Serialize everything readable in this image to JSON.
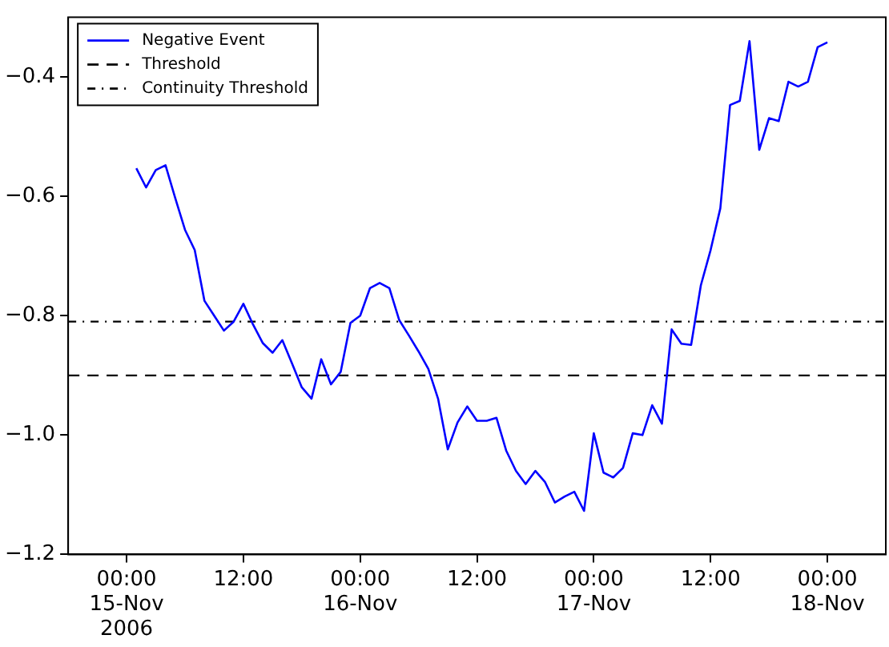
{
  "chart_data": {
    "type": "line",
    "x": [
      "2006-11-15T01:00",
      "2006-11-15T02:00",
      "2006-11-15T03:00",
      "2006-11-15T04:00",
      "2006-11-15T05:00",
      "2006-11-15T06:00",
      "2006-11-15T07:00",
      "2006-11-15T08:00",
      "2006-11-15T09:00",
      "2006-11-15T10:00",
      "2006-11-15T11:00",
      "2006-11-15T12:00",
      "2006-11-15T13:00",
      "2006-11-15T14:00",
      "2006-11-15T15:00",
      "2006-11-15T16:00",
      "2006-11-15T17:00",
      "2006-11-15T18:00",
      "2006-11-15T19:00",
      "2006-11-15T20:00",
      "2006-11-15T21:00",
      "2006-11-15T22:00",
      "2006-11-15T23:00",
      "2006-11-16T00:00",
      "2006-11-16T01:00",
      "2006-11-16T02:00",
      "2006-11-16T03:00",
      "2006-11-16T04:00",
      "2006-11-16T05:00",
      "2006-11-16T06:00",
      "2006-11-16T07:00",
      "2006-11-16T08:00",
      "2006-11-16T09:00",
      "2006-11-16T10:00",
      "2006-11-16T11:00",
      "2006-11-16T12:00",
      "2006-11-16T13:00",
      "2006-11-16T14:00",
      "2006-11-16T15:00",
      "2006-11-16T16:00",
      "2006-11-16T17:00",
      "2006-11-16T18:00",
      "2006-11-16T19:00",
      "2006-11-16T20:00",
      "2006-11-16T21:00",
      "2006-11-16T22:00",
      "2006-11-16T23:00",
      "2006-11-17T00:00",
      "2006-11-17T01:00",
      "2006-11-17T02:00",
      "2006-11-17T03:00",
      "2006-11-17T04:00",
      "2006-11-17T05:00",
      "2006-11-17T06:00",
      "2006-11-17T07:00",
      "2006-11-17T08:00",
      "2006-11-17T09:00",
      "2006-11-17T10:00",
      "2006-11-17T11:00",
      "2006-11-17T12:00",
      "2006-11-17T13:00",
      "2006-11-17T14:00",
      "2006-11-17T15:00",
      "2006-11-17T16:00",
      "2006-11-17T17:00",
      "2006-11-17T18:00",
      "2006-11-17T19:00",
      "2006-11-17T20:00",
      "2006-11-17T21:00",
      "2006-11-17T22:00",
      "2006-11-17T23:00",
      "2006-11-18T00:00"
    ],
    "series": [
      {
        "name": "Negative Event",
        "color": "#0000ff",
        "values": [
          -0.553,
          -0.585,
          -0.556,
          -0.548,
          -0.603,
          -0.656,
          -0.69,
          -0.775,
          -0.8,
          -0.825,
          -0.81,
          -0.78,
          -0.815,
          -0.846,
          -0.862,
          -0.841,
          -0.88,
          -0.92,
          -0.939,
          -0.873,
          -0.915,
          -0.894,
          -0.812,
          -0.8,
          -0.754,
          -0.745,
          -0.754,
          -0.807,
          -0.833,
          -0.86,
          -0.889,
          -0.939,
          -1.024,
          -0.979,
          -0.952,
          -0.976,
          -0.976,
          -0.971,
          -1.026,
          -1.06,
          -1.082,
          -1.06,
          -1.079,
          -1.113,
          -1.103,
          -1.095,
          -1.127,
          -0.997,
          -1.063,
          -1.071,
          -1.055,
          -0.997,
          -1.0,
          -0.95,
          -0.981,
          -0.823,
          -0.847,
          -0.849,
          -0.749,
          -0.69,
          -0.62,
          -0.447,
          -0.44,
          -0.34,
          -0.522,
          -0.469,
          -0.474,
          -0.408,
          -0.416,
          -0.408,
          -0.35,
          -0.342
        ]
      }
    ],
    "ref_lines": [
      {
        "axis": "y",
        "value": -0.9,
        "label": "Threshold",
        "color": "#000000",
        "line_style": "dashed"
      },
      {
        "axis": "y",
        "value": -0.81,
        "label": "Continuity Threshold",
        "color": "#000000",
        "line_style": "dashdot"
      }
    ],
    "xlim": [
      "2006-11-14T18:00",
      "2006-11-18T06:00"
    ],
    "xticks": [
      {
        "value": "2006-11-15T00:00",
        "label": "00:00\n15-Nov\n2006"
      },
      {
        "value": "2006-11-15T12:00",
        "label": "12:00"
      },
      {
        "value": "2006-11-16T00:00",
        "label": "00:00\n16-Nov"
      },
      {
        "value": "2006-11-16T12:00",
        "label": "12:00"
      },
      {
        "value": "2006-11-17T00:00",
        "label": "00:00\n17-Nov"
      },
      {
        "value": "2006-11-17T12:00",
        "label": "12:00"
      },
      {
        "value": "2006-11-18T00:00",
        "label": "00:00\n18-Nov"
      }
    ],
    "ylim": [
      -1.2,
      -0.3
    ],
    "yticks": [
      {
        "value": -1.2,
        "label": "−1.2"
      },
      {
        "value": -1.0,
        "label": "−1.0"
      },
      {
        "value": -0.8,
        "label": "−0.8"
      },
      {
        "value": -0.6,
        "label": "−0.6"
      },
      {
        "value": -0.4,
        "label": "−0.4"
      }
    ],
    "grid": false,
    "legend": "top left",
    "marker": "none",
    "line_style": "solid"
  }
}
